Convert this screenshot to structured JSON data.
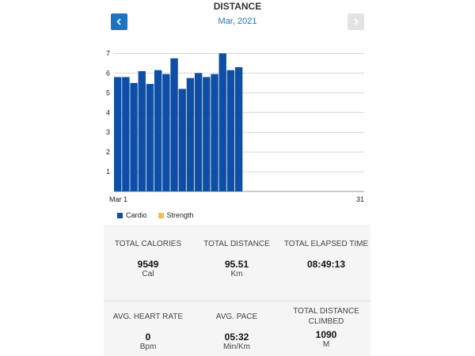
{
  "header": {
    "title": "DISTANCE",
    "month": "Mar, 2021"
  },
  "nav": {
    "prev_icon": "chevron-left-icon",
    "next_icon": "chevron-right-icon"
  },
  "colors": {
    "cardio": "#0d4ea6",
    "strength": "#f1c04a",
    "accent": "#1e73c2"
  },
  "chart_data": {
    "type": "bar",
    "x_start_label": "Mar 1",
    "x_end_label": "31",
    "y_ticks": [
      1,
      2,
      3,
      4,
      5,
      6,
      7
    ],
    "ylim": [
      0,
      7.5
    ],
    "grid": true,
    "legend": "bottom-left",
    "series": [
      {
        "name": "Cardio",
        "values": [
          5.8,
          5.8,
          5.5,
          6.1,
          5.45,
          6.15,
          5.95,
          6.75,
          5.2,
          5.75,
          6.0,
          5.8,
          5.95,
          7.0,
          6.15,
          6.3
        ]
      },
      {
        "name": "Strength",
        "values": []
      }
    ]
  },
  "stats": [
    {
      "label": "TOTAL CALORIES",
      "value": "9549",
      "unit": "Cal"
    },
    {
      "label": "TOTAL DISTANCE",
      "value": "95.51",
      "unit": "Km"
    },
    {
      "label": "TOTAL ELAPSED TIME",
      "value": "08:49:13",
      "unit": ""
    },
    {
      "label": "AVG. HEART RATE",
      "value": "0",
      "unit": "Bpm"
    },
    {
      "label": "AVG. PACE",
      "value": "05:32",
      "unit": "Min/Km"
    },
    {
      "label": "TOTAL DISTANCE CLIMBED",
      "value": "1090",
      "unit": "M"
    }
  ]
}
